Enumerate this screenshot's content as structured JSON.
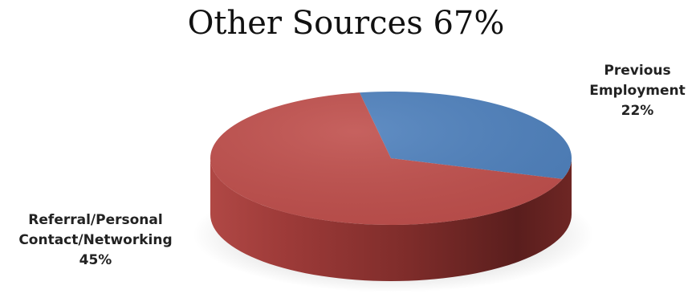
{
  "chart_data": {
    "type": "pie",
    "title": "Other Sources  67%",
    "slices": [
      {
        "label_lines": [
          "Previous",
          "Employment",
          "22%"
        ],
        "value": 22,
        "color": "#4F81BD"
      },
      {
        "label_lines": [
          "Referral/Personal",
          "Contact/Networking",
          "45%"
        ],
        "value": 45,
        "color": "#C0504D"
      }
    ],
    "legend": "none",
    "style": "3d"
  }
}
